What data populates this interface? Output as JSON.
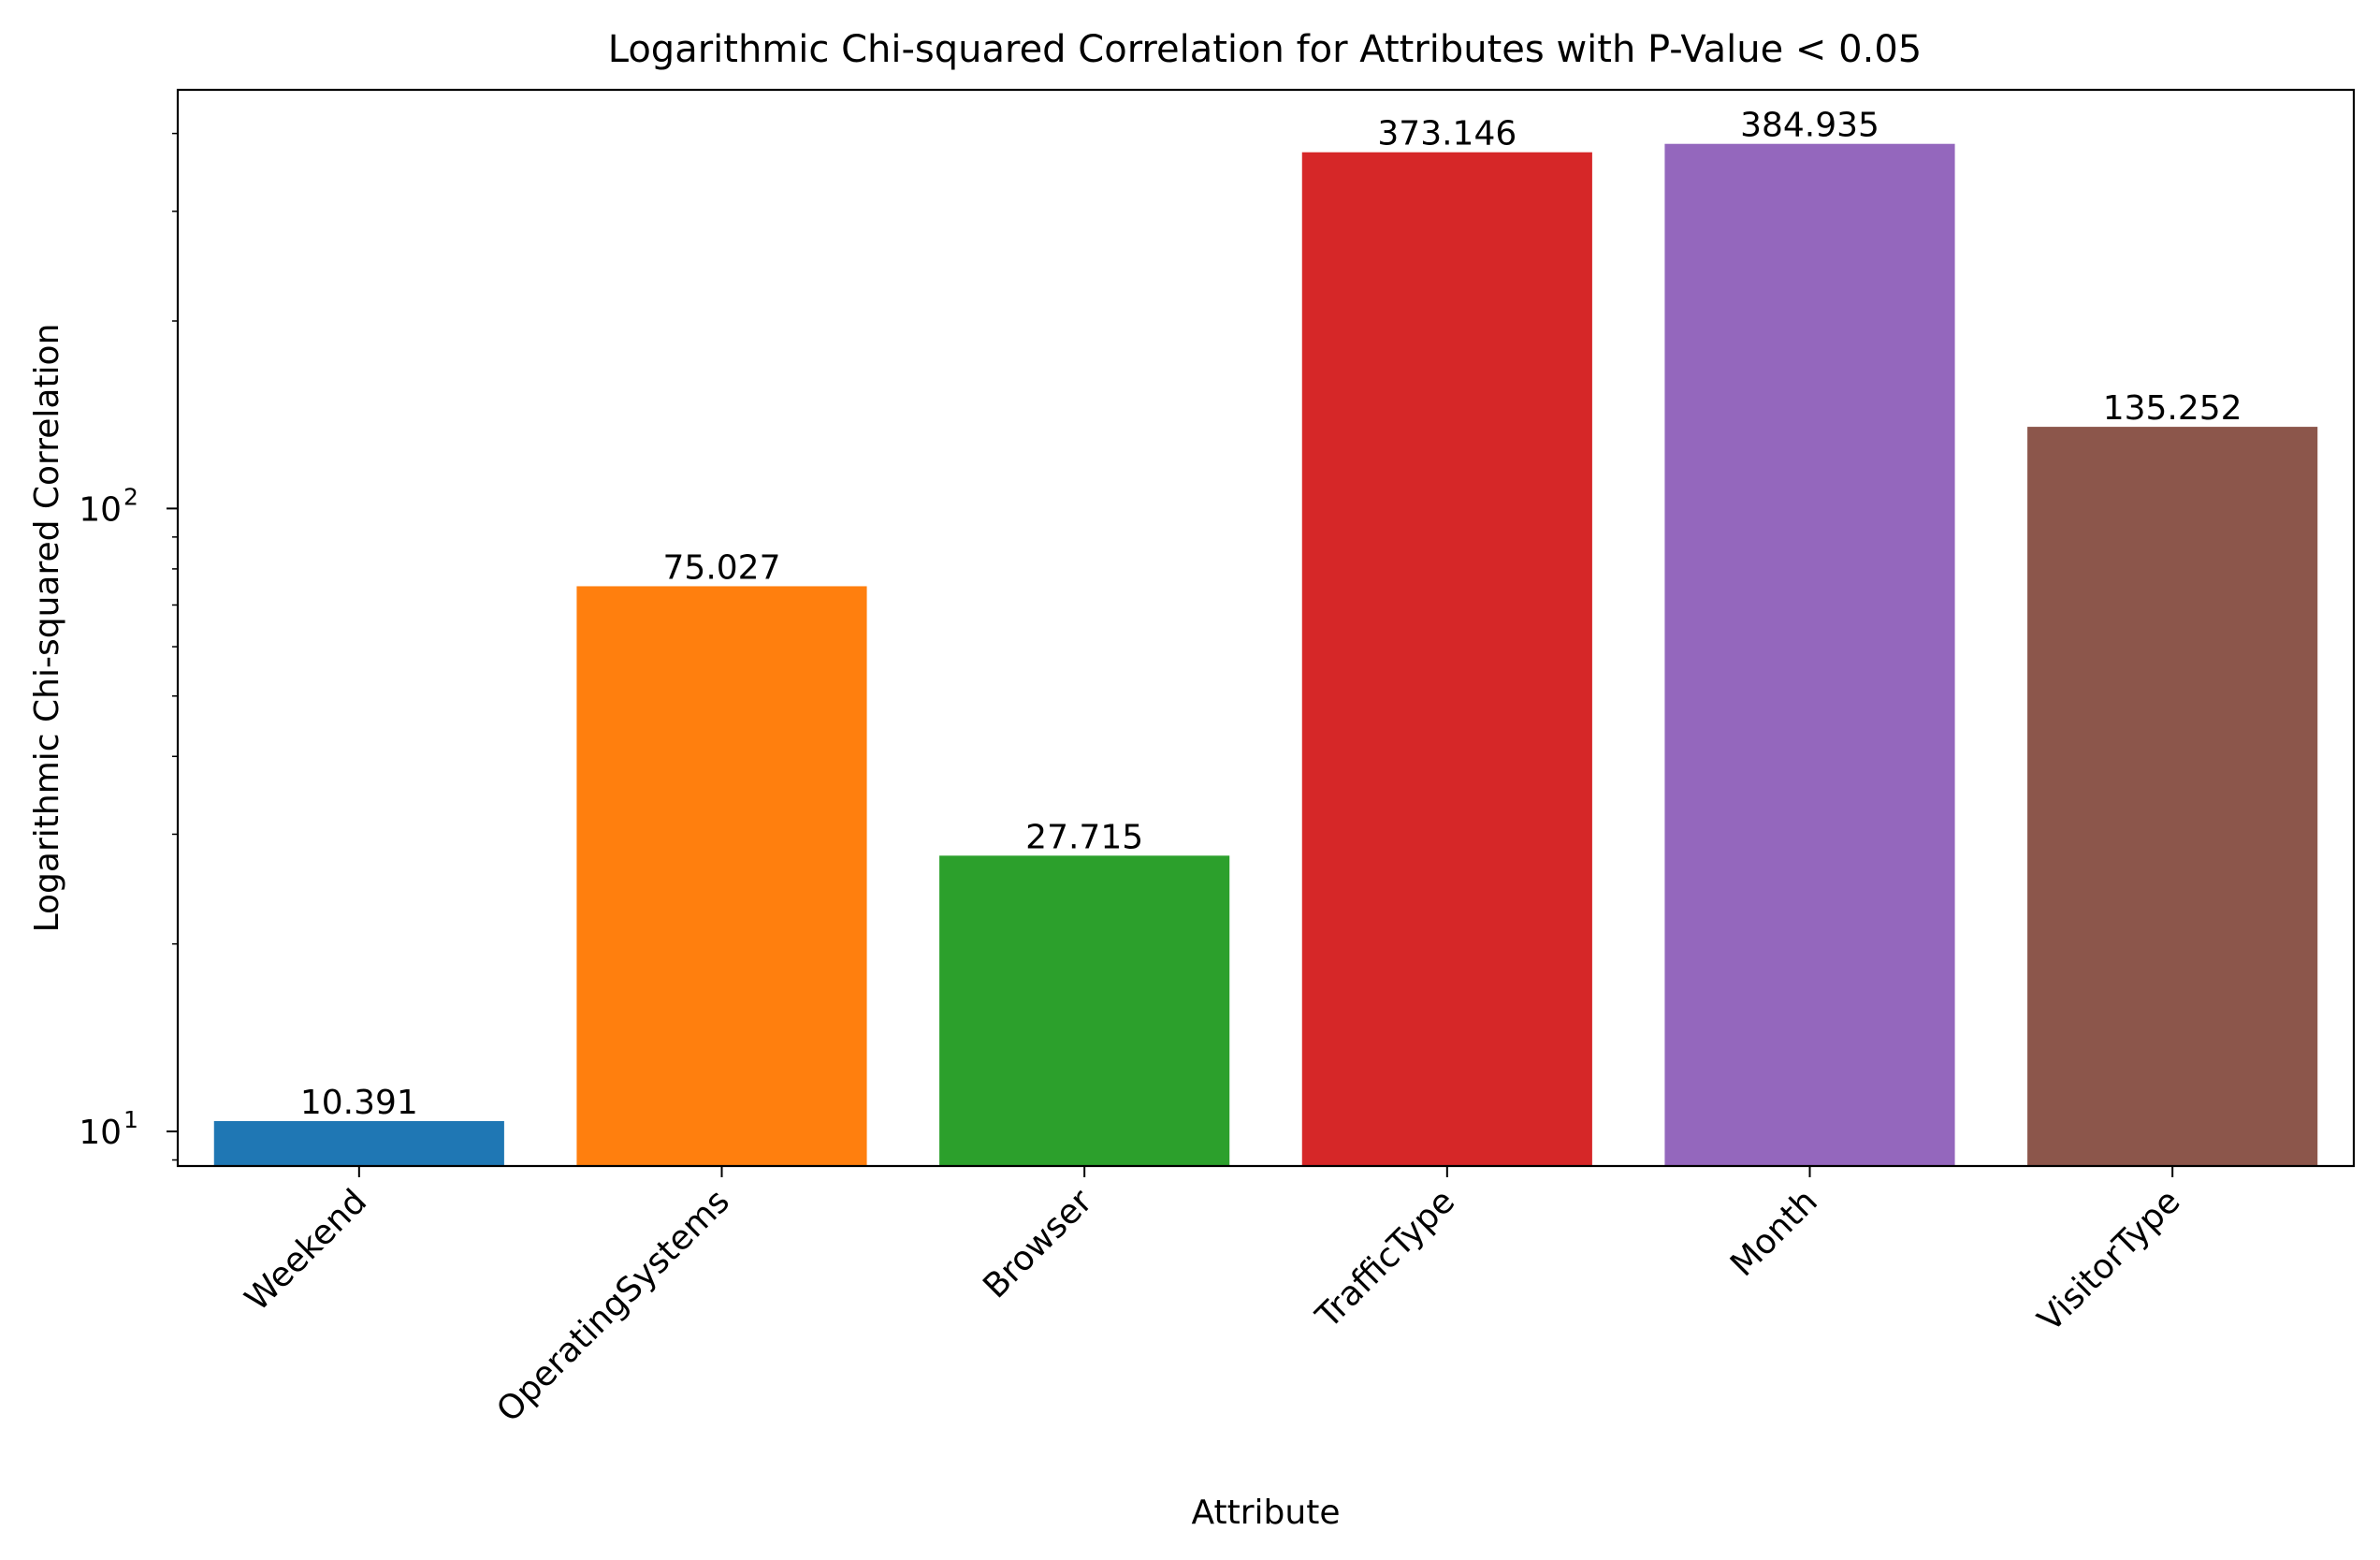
{
  "chart_data": {
    "type": "bar",
    "title": "Logarithmic Chi-squared Correlation for Attributes with P-Value < 0.05",
    "xlabel": "Attribute",
    "ylabel": "Logarithmic Chi-squared Correlation",
    "y_scale": "log",
    "ylim": [
      8.8,
      470
    ],
    "y_ticks": [
      {
        "value": 10,
        "base": "10",
        "exp": "1"
      },
      {
        "value": 100,
        "base": "10",
        "exp": "2"
      }
    ],
    "grid": false,
    "categories": [
      "Weekend",
      "OperatingSystems",
      "Browser",
      "TrafficType",
      "Month",
      "VisitorType"
    ],
    "values": [
      10.391,
      75.027,
      27.715,
      373.146,
      384.935,
      135.252
    ],
    "value_labels": [
      "10.391",
      "75.027",
      "27.715",
      "373.146",
      "384.935",
      "135.252"
    ],
    "colors": [
      "#1f77b4",
      "#ff7f0e",
      "#2ca02c",
      "#d62728",
      "#9467bd",
      "#8c564b"
    ]
  }
}
